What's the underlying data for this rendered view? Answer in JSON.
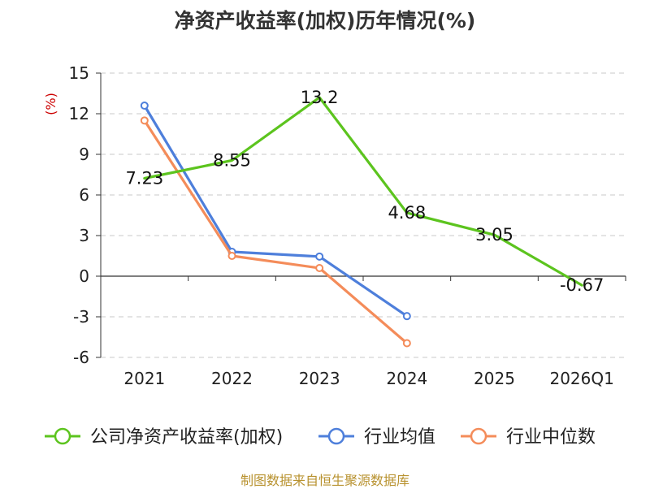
{
  "title": "净资产收益率(加权)历年情况(%)",
  "source": "制图数据来自恒生聚源数据库",
  "chart_data": {
    "type": "line",
    "title": "净资产收益率(加权)历年情况(%)",
    "ylabel": "(%)",
    "xlabel": "",
    "categories": [
      "2021",
      "2022",
      "2023",
      "2024",
      "2025",
      "2026Q1"
    ],
    "ylim": [
      -6,
      15
    ],
    "yticks": [
      15,
      12,
      9,
      6,
      3,
      0,
      -3,
      -6
    ],
    "grid": true,
    "legend_position": "bottom",
    "series": [
      {
        "name": "公司净资产收益率(加权)",
        "color": "#5cc41e",
        "values": [
          7.23,
          8.55,
          13.2,
          4.68,
          3.05,
          -0.67
        ],
        "labels": [
          "7.23",
          "8.55",
          "13.2",
          "4.68",
          "3.05",
          "-0.67"
        ],
        "show_labels": true
      },
      {
        "name": "行业均值",
        "color": "#4e7fdb",
        "values": [
          12.6,
          1.8,
          1.45,
          -2.95,
          null,
          null
        ],
        "show_labels": false
      },
      {
        "name": "行业中位数",
        "color": "#f48c5a",
        "values": [
          11.5,
          1.5,
          0.6,
          -4.95,
          null,
          null
        ],
        "show_labels": false
      }
    ]
  }
}
